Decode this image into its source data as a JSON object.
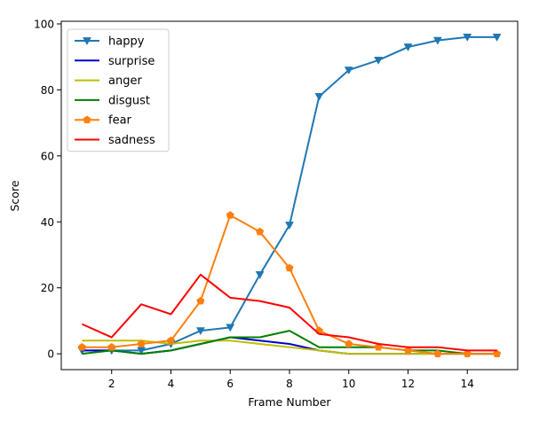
{
  "chart_data": {
    "type": "line",
    "title": "",
    "xlabel": "Frame Number",
    "ylabel": "Score",
    "xlim": [
      0.3,
      15.7
    ],
    "ylim": [
      -4.8,
      100.8
    ],
    "xticks": [
      2,
      4,
      6,
      8,
      10,
      12,
      14
    ],
    "yticks": [
      0,
      20,
      40,
      60,
      80,
      100
    ],
    "grid": false,
    "legend_position": "top-left",
    "x": [
      1,
      2,
      3,
      4,
      5,
      6,
      7,
      8,
      9,
      10,
      11,
      12,
      13,
      14,
      15
    ],
    "series": [
      {
        "name": "happy",
        "color": "#1f77b4",
        "marker": "triangle-down",
        "values": [
          1,
          1,
          1,
          3,
          7,
          8,
          24,
          39,
          78,
          86,
          89,
          93,
          95,
          96,
          96
        ]
      },
      {
        "name": "surprise",
        "color": "#0000cc",
        "marker": "none",
        "values": [
          1,
          1,
          0,
          1,
          3,
          5,
          4,
          3,
          1,
          0,
          0,
          0,
          0,
          0,
          0
        ]
      },
      {
        "name": "anger",
        "color": "#bfbf00",
        "marker": "none",
        "values": [
          4,
          4,
          4,
          3,
          4,
          4,
          3,
          2,
          1,
          0,
          0,
          0,
          0,
          0,
          0
        ]
      },
      {
        "name": "disgust",
        "color": "#008000",
        "marker": "none",
        "values": [
          0,
          1,
          0,
          1,
          3,
          5,
          5,
          7,
          2,
          2,
          2,
          1,
          1,
          0,
          0
        ]
      },
      {
        "name": "fear",
        "color": "#ff7f0e",
        "marker": "pentagon",
        "values": [
          2,
          2,
          3,
          4,
          16,
          42,
          37,
          26,
          7,
          3,
          2,
          1,
          0,
          0,
          0
        ]
      },
      {
        "name": "sadness",
        "color": "#ff0000",
        "marker": "none",
        "values": [
          9,
          5,
          15,
          12,
          24,
          17,
          16,
          14,
          6,
          5,
          3,
          2,
          2,
          1,
          1
        ]
      }
    ]
  }
}
